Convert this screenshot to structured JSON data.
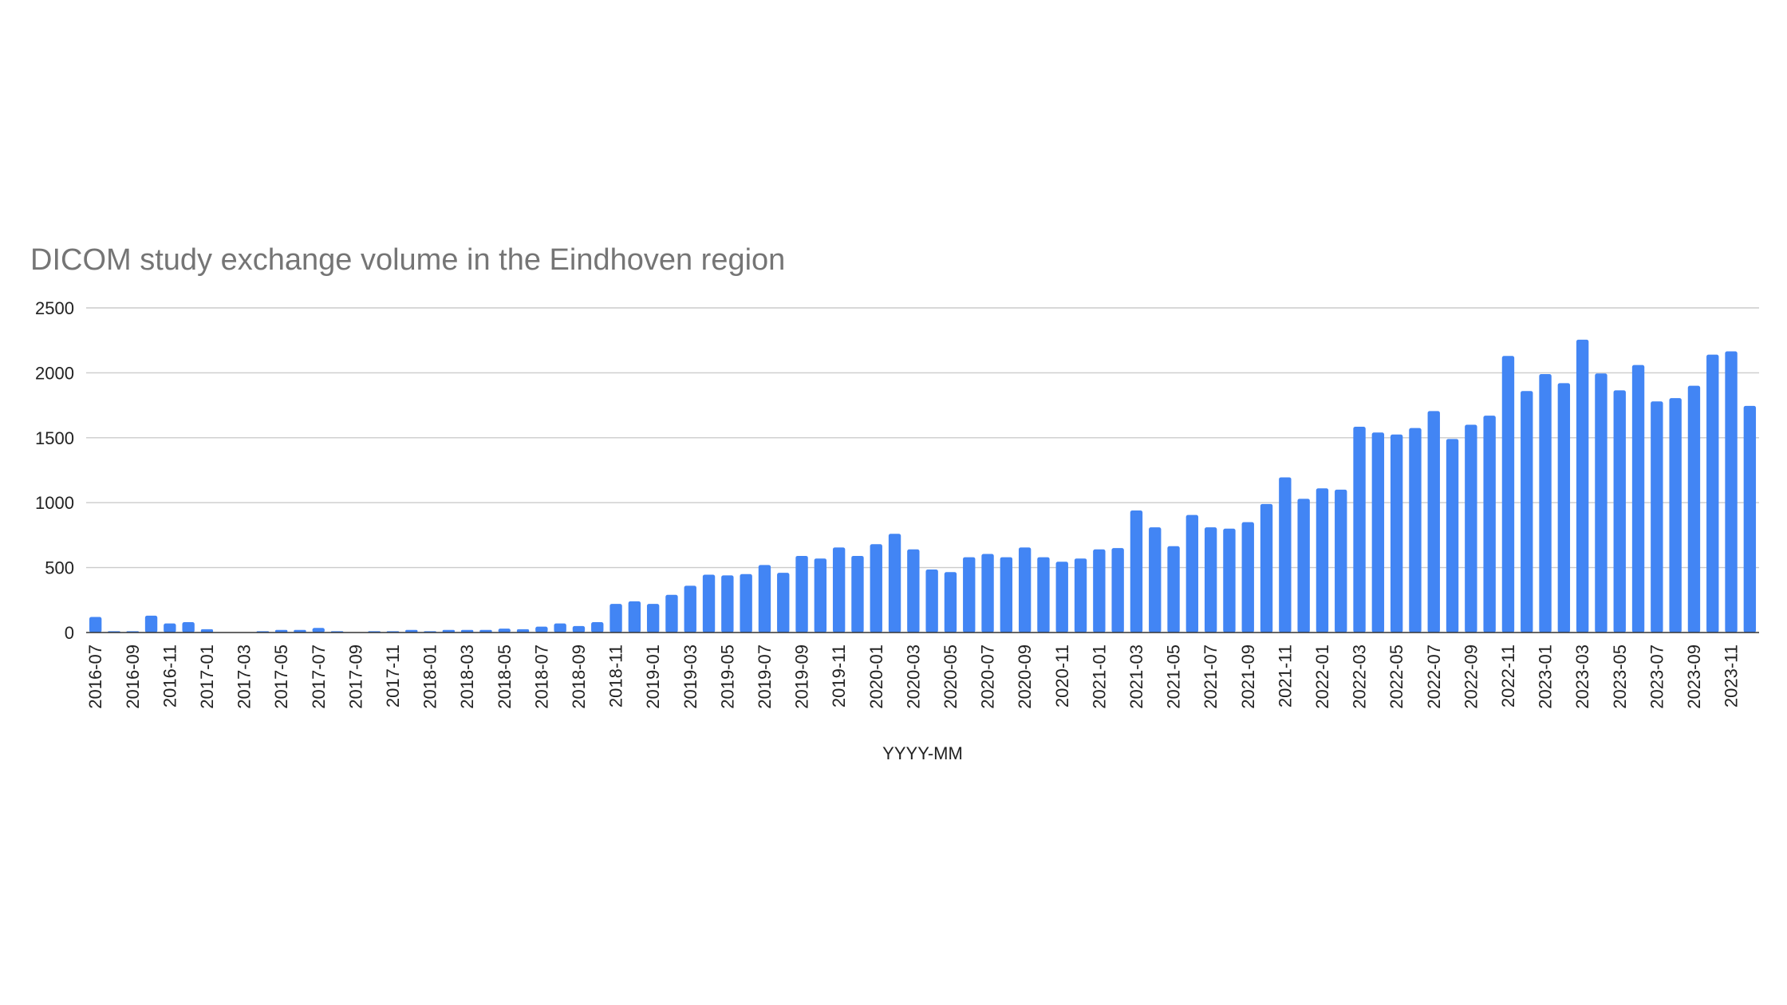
{
  "chart_data": {
    "type": "bar",
    "title": "DICOM study exchange volume in the Eindhoven region",
    "xlabel": "YYYY-MM",
    "ylabel": "",
    "ylim": [
      0,
      2500
    ],
    "yticks": [
      0,
      500,
      1000,
      1500,
      2000,
      2500
    ],
    "grid": true,
    "colors": {
      "bar": "#4285f4"
    },
    "categories": [
      "2016-07",
      "2016-08",
      "2016-09",
      "2016-10",
      "2016-11",
      "2016-12",
      "2017-01",
      "2017-02",
      "2017-03",
      "2017-04",
      "2017-05",
      "2017-06",
      "2017-07",
      "2017-08",
      "2017-09",
      "2017-10",
      "2017-11",
      "2017-12",
      "2018-01",
      "2018-02",
      "2018-03",
      "2018-04",
      "2018-05",
      "2018-06",
      "2018-07",
      "2018-08",
      "2018-09",
      "2018-10",
      "2018-11",
      "2018-12",
      "2019-01",
      "2019-02",
      "2019-03",
      "2019-04",
      "2019-05",
      "2019-06",
      "2019-07",
      "2019-08",
      "2019-09",
      "2019-10",
      "2019-11",
      "2019-12",
      "2020-01",
      "2020-02",
      "2020-03",
      "2020-04",
      "2020-05",
      "2020-06",
      "2020-07",
      "2020-08",
      "2020-09",
      "2020-10",
      "2020-11",
      "2020-12",
      "2021-01",
      "2021-02",
      "2021-03",
      "2021-04",
      "2021-05",
      "2021-06",
      "2021-07",
      "2021-08",
      "2021-09",
      "2021-10",
      "2021-11",
      "2021-12",
      "2022-01",
      "2022-02",
      "2022-03",
      "2022-04",
      "2022-05",
      "2022-06",
      "2022-07",
      "2022-08",
      "2022-09",
      "2022-10",
      "2022-11",
      "2022-12",
      "2023-01",
      "2023-02",
      "2023-03",
      "2023-04",
      "2023-05",
      "2023-06",
      "2023-07",
      "2023-08",
      "2023-09",
      "2023-10",
      "2023-11",
      "2023-12"
    ],
    "values": [
      120,
      10,
      10,
      130,
      70,
      80,
      25,
      0,
      0,
      10,
      20,
      20,
      35,
      10,
      0,
      10,
      10,
      20,
      10,
      20,
      20,
      20,
      30,
      25,
      45,
      70,
      50,
      80,
      220,
      240,
      220,
      290,
      360,
      445,
      440,
      450,
      520,
      460,
      590,
      570,
      655,
      590,
      680,
      760,
      640,
      485,
      465,
      580,
      605,
      580,
      655,
      580,
      545,
      570,
      640,
      650,
      940,
      810,
      665,
      905,
      810,
      800,
      850,
      990,
      1195,
      1030,
      1110,
      1100,
      1585,
      1540,
      1525,
      1575,
      1705,
      1490,
      1600,
      1670,
      2130,
      1860,
      1990,
      1920,
      2255,
      1995,
      1865,
      2060,
      1780,
      1805,
      1900,
      2140,
      2165,
      1745
    ]
  }
}
